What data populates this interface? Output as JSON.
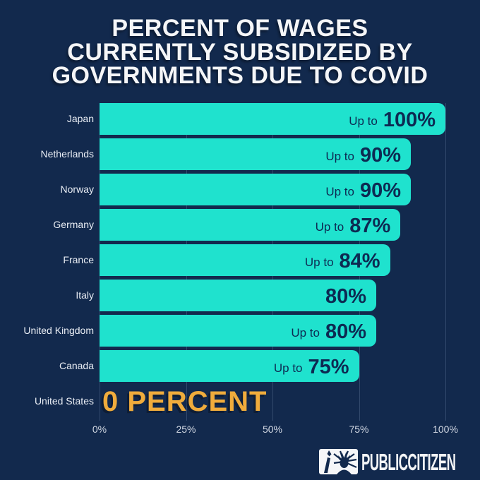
{
  "title": {
    "lines": [
      "PERCENT OF WAGES",
      "CURRENTLY SUBSIDIZED BY",
      "GOVERNMENTS DUE TO COVID"
    ]
  },
  "chart_data": {
    "type": "bar",
    "orientation": "horizontal",
    "title": "Percent of wages currently subsidized by governments due to COVID",
    "categories": [
      "Japan",
      "Netherlands",
      "Norway",
      "Germany",
      "France",
      "Italy",
      "United Kingdom",
      "Canada",
      "United States"
    ],
    "values": [
      100,
      90,
      90,
      87,
      84,
      80,
      80,
      75,
      0
    ],
    "rows": [
      {
        "country": "Japan",
        "prefix": "Up to",
        "value_label": "100%",
        "value": 100
      },
      {
        "country": "Netherlands",
        "prefix": "Up to",
        "value_label": "90%",
        "value": 90
      },
      {
        "country": "Norway",
        "prefix": "Up to",
        "value_label": "90%",
        "value": 90
      },
      {
        "country": "Germany",
        "prefix": "Up to",
        "value_label": "87%",
        "value": 87
      },
      {
        "country": "France",
        "prefix": "Up to",
        "value_label": "84%",
        "value": 84
      },
      {
        "country": "Italy",
        "prefix": "",
        "value_label": "80%",
        "value": 80
      },
      {
        "country": "United Kingdom",
        "prefix": "Up to",
        "value_label": "80%",
        "value": 80
      },
      {
        "country": "Canada",
        "prefix": "Up to",
        "value_label": "75%",
        "value": 75
      },
      {
        "country": "United States",
        "prefix": "",
        "value_label": "0 PERCENT",
        "value": 0
      }
    ],
    "x_axis": {
      "ticks": [
        "0%",
        "25%",
        "50%",
        "75%",
        "100%"
      ],
      "tick_values": [
        0,
        25,
        50,
        75,
        100
      ],
      "range": [
        0,
        100
      ],
      "grid": "vertical"
    },
    "legend": "none",
    "colors": {
      "background": "#12294d",
      "bar": "#1fe2ce",
      "bar_text": "#0d2a52",
      "title_text": "#f5f6f8",
      "highlight_text": "#f0ac3c",
      "tick_text": "#d2d8e3"
    }
  },
  "footer": {
    "brand": "PUBLICCITIZEN",
    "logo_icon": "statue-of-liberty-icon"
  }
}
